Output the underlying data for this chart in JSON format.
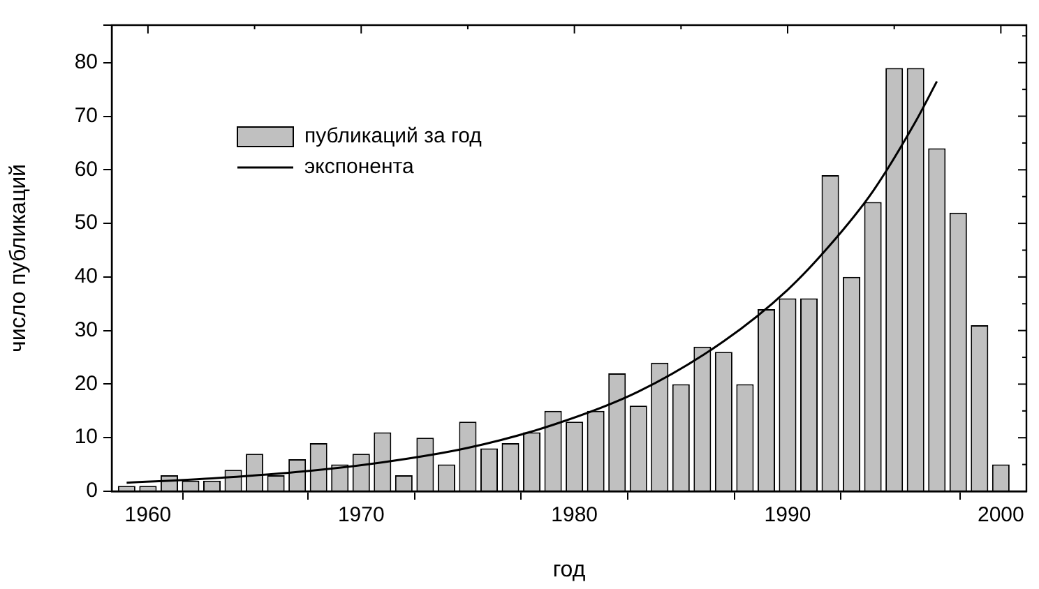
{
  "chart_data": {
    "type": "bar",
    "xlabel": "год",
    "ylabel": "число публикаций",
    "x": [
      1959,
      1960,
      1961,
      1962,
      1963,
      1964,
      1965,
      1966,
      1967,
      1968,
      1969,
      1970,
      1971,
      1972,
      1973,
      1974,
      1975,
      1976,
      1977,
      1978,
      1979,
      1980,
      1981,
      1982,
      1983,
      1984,
      1985,
      1986,
      1987,
      1988,
      1989,
      1990,
      1991,
      1992,
      1993,
      1994,
      1995,
      1996,
      1997,
      1998,
      1999,
      2000
    ],
    "series": [
      {
        "name": "публикаций за год",
        "color": "#c0c0c0",
        "values": [
          1,
          1,
          3,
          2,
          2,
          4,
          7,
          3,
          6,
          9,
          5,
          7,
          11,
          3,
          10,
          5,
          13,
          8,
          9,
          11,
          15,
          13,
          15,
          22,
          16,
          24,
          20,
          27,
          26,
          20,
          34,
          36,
          36,
          59,
          40,
          54,
          79,
          79,
          64,
          52,
          31,
          5
        ]
      },
      {
        "name": "экспонента",
        "type": "line",
        "color": "#000000",
        "x": [
          1959,
          1963,
          1967,
          1971,
          1975,
          1979,
          1983,
          1987,
          1990,
          1992,
          1994,
          1996,
          1997
        ],
        "values": [
          1.6,
          2.4,
          3.6,
          5.4,
          8.1,
          12.4,
          18.6,
          28,
          37.6,
          46,
          56,
          69,
          76.5
        ]
      }
    ],
    "xlim": [
      1958.3,
      2001.2
    ],
    "xticks": [
      1960,
      {
        "value": 1965,
        "label": null
      },
      1970,
      {
        "value": 1975,
        "label": null
      },
      1980,
      {
        "value": 1985,
        "label": null
      },
      1990,
      {
        "value": 1995,
        "label": null
      },
      2000
    ],
    "ylim": [
      0,
      87
    ],
    "yticks": [
      0,
      {
        "value": 5,
        "label": null
      },
      10,
      {
        "value": 15,
        "label": null
      },
      20,
      {
        "value": 25,
        "label": null
      },
      30,
      {
        "value": 35,
        "label": null
      },
      40,
      {
        "value": 45,
        "label": null
      },
      50,
      {
        "value": 55,
        "label": null
      },
      60,
      {
        "value": 65,
        "label": null
      },
      70,
      {
        "value": 75,
        "label": null
      },
      80,
      {
        "value": 85,
        "label": null
      }
    ],
    "legend": "top left",
    "marker": "none",
    "grid": false
  }
}
